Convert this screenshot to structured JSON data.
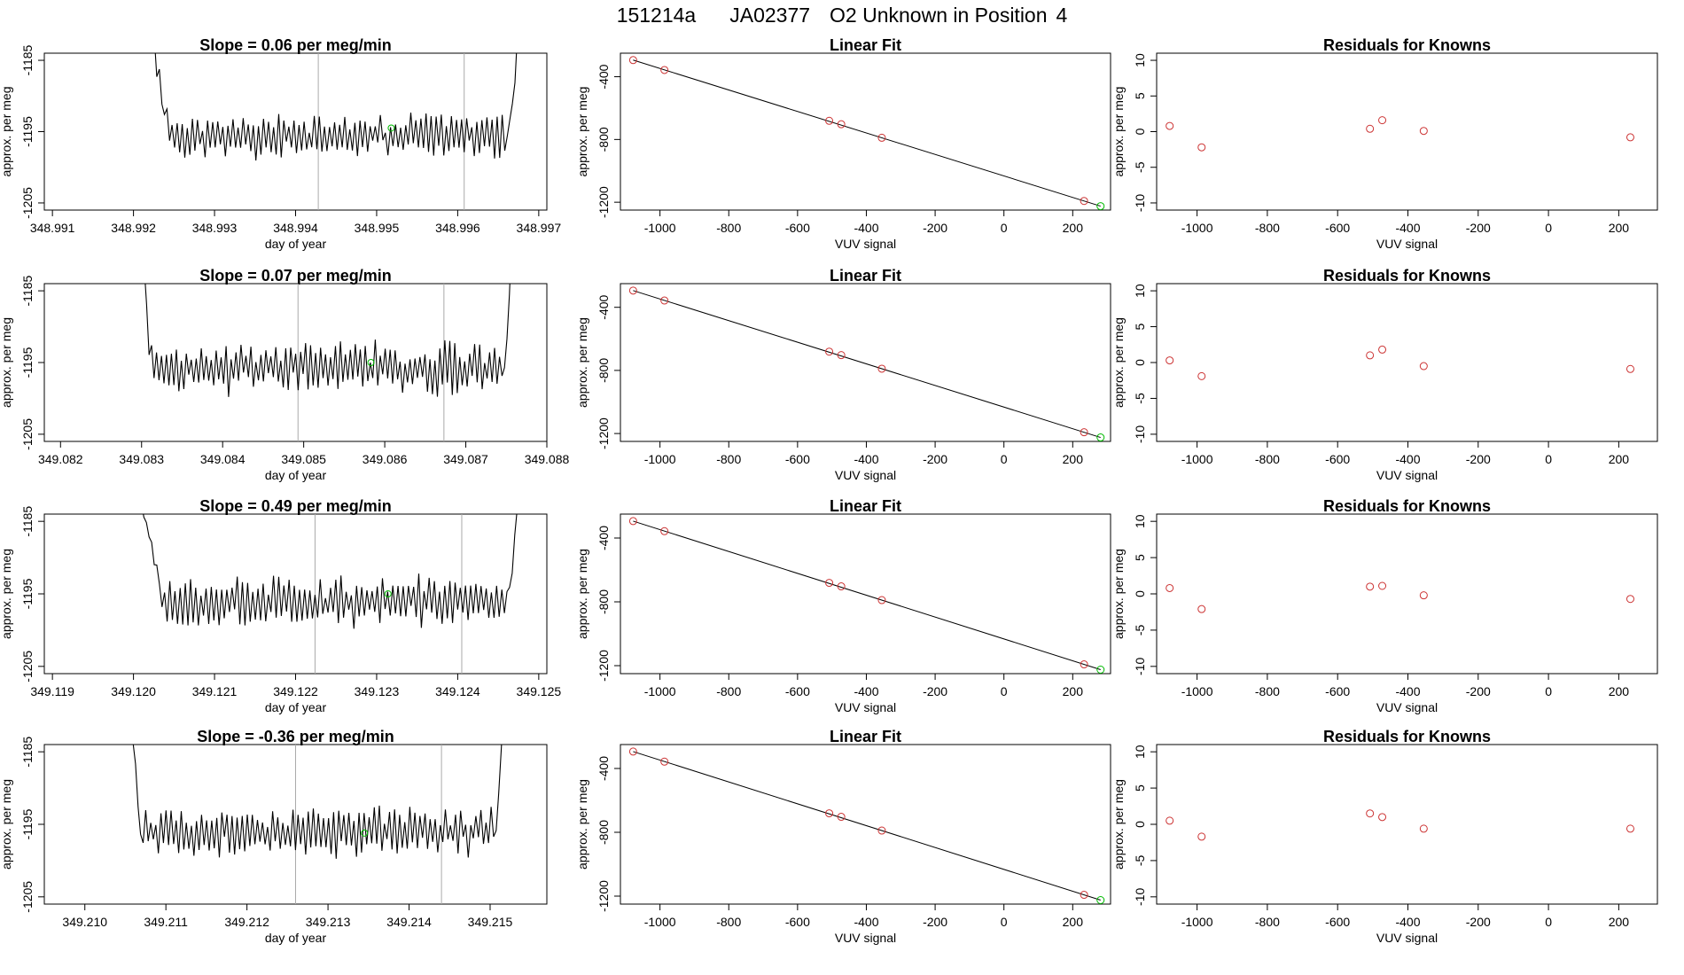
{
  "figure_title": {
    "run_id": "151214a",
    "tank_id": "JA02377",
    "description": "O2 Unknown in Position",
    "position": "4"
  },
  "colors": {
    "known": "#cc3333",
    "unknown": "#00bb00",
    "line": "#000000",
    "vline": "#aaaaaa"
  },
  "chart_data": [
    {
      "panel": "timeseries",
      "row": 1,
      "type": "line",
      "title_prefix": "Slope = ",
      "slope": "0.06",
      "title_suffix": " per meg/min",
      "xlabel": "day of year",
      "ylabel": "approx. per meg",
      "xlim": [
        348.9909,
        348.9971
      ],
      "ylim": [
        -1206,
        -1184
      ],
      "xticks": [
        "348.991",
        "348.992",
        "348.993",
        "348.994",
        "348.995",
        "348.996",
        "348.997"
      ],
      "yticks": [
        "-1185",
        "-1195",
        "-1205"
      ],
      "x_start": 348.9921,
      "x_end": 348.9968,
      "flat_start": 348.99245,
      "flat_end": 348.9966,
      "center": -1195.5,
      "amplitude": 2.4,
      "seed": 11,
      "vlines": [
        348.99428,
        348.99608
      ],
      "marker": {
        "x": 348.99518,
        "y": -1194.5
      }
    },
    {
      "panel": "fit",
      "row": 1,
      "type": "scatter",
      "title": "Linear Fit",
      "xlabel": "VUV signal",
      "ylabel": "approx. per meg",
      "xlim": [
        -1115,
        310
      ],
      "ylim": [
        -1250,
        -250
      ],
      "xticks": [
        "-1000",
        "-800",
        "-600",
        "-400",
        "-200",
        "0",
        "200"
      ],
      "yticks": [
        "-400",
        "-800",
        "-1200"
      ],
      "known_x": [
        -1078,
        -987,
        -508,
        -473,
        -355,
        233
      ],
      "known_y": [
        -294,
        -357,
        -681,
        -703,
        -789,
        -1192
      ],
      "unknown": {
        "x": 281,
        "y": -1225
      },
      "line": {
        "x1": -1078,
        "y1": -294,
        "x2": 281,
        "y2": -1225
      }
    },
    {
      "panel": "residuals",
      "row": 1,
      "type": "scatter",
      "title": "Residuals for Knowns",
      "xlabel": "VUV signal",
      "ylabel": "approx. per meg",
      "xlim": [
        -1115,
        310
      ],
      "ylim": [
        -11,
        11
      ],
      "xticks": [
        "-1000",
        "-800",
        "-600",
        "-400",
        "-200",
        "0",
        "200"
      ],
      "yticks": [
        "10",
        "5",
        "0",
        "-5",
        "-10"
      ],
      "x": [
        -1078,
        -987,
        -508,
        -473,
        -355,
        233
      ],
      "y": [
        0.8,
        -2.2,
        0.4,
        1.6,
        0.1,
        -0.8
      ]
    },
    {
      "panel": "timeseries",
      "row": 2,
      "type": "line",
      "title_prefix": "Slope = ",
      "slope": "0.07",
      "title_suffix": " per meg/min",
      "xlabel": "day of year",
      "ylabel": "approx. per meg",
      "xlim": [
        349.0818,
        349.088
      ],
      "ylim": [
        -1206,
        -1184
      ],
      "xticks": [
        "349.082",
        "349.083",
        "349.084",
        "349.085",
        "349.086",
        "349.087",
        "349.088"
      ],
      "yticks": [
        "-1185",
        "-1195",
        "-1205"
      ],
      "x_start": 349.083,
      "x_end": 349.0876,
      "flat_start": 349.0831,
      "flat_end": 349.08745,
      "center": -1195.8,
      "amplitude": 2.8,
      "seed": 23,
      "vlines": [
        349.08493,
        349.08673
      ],
      "marker": {
        "x": 349.08583,
        "y": -1195.0
      }
    },
    {
      "panel": "fit",
      "row": 2,
      "type": "scatter",
      "title": "Linear Fit",
      "xlabel": "VUV signal",
      "ylabel": "approx. per meg",
      "xlim": [
        -1115,
        310
      ],
      "ylim": [
        -1250,
        -250
      ],
      "xticks": [
        "-1000",
        "-800",
        "-600",
        "-400",
        "-200",
        "0",
        "200"
      ],
      "yticks": [
        "-400",
        "-800",
        "-1200"
      ],
      "known_x": [
        -1078,
        -987,
        -508,
        -473,
        -355,
        233
      ],
      "known_y": [
        -294,
        -357,
        -681,
        -703,
        -789,
        -1192
      ],
      "unknown": {
        "x": 281,
        "y": -1225
      },
      "line": {
        "x1": -1078,
        "y1": -294,
        "x2": 281,
        "y2": -1225
      }
    },
    {
      "panel": "residuals",
      "row": 2,
      "type": "scatter",
      "title": "Residuals for Knowns",
      "xlabel": "VUV signal",
      "ylabel": "approx. per meg",
      "xlim": [
        -1115,
        310
      ],
      "ylim": [
        -11,
        11
      ],
      "xticks": [
        "-1000",
        "-800",
        "-600",
        "-400",
        "-200",
        "0",
        "200"
      ],
      "yticks": [
        "10",
        "5",
        "0",
        "-5",
        "-10"
      ],
      "x": [
        -1078,
        -987,
        -508,
        -473,
        -355,
        233
      ],
      "y": [
        0.3,
        -1.9,
        1.0,
        1.8,
        -0.5,
        -0.9
      ]
    },
    {
      "panel": "timeseries",
      "row": 3,
      "type": "line",
      "title_prefix": "Slope = ",
      "slope": "0.49",
      "title_suffix": " per meg/min",
      "xlabel": "day of year",
      "ylabel": "approx. per meg",
      "xlim": [
        349.1189,
        349.1251
      ],
      "ylim": [
        -1206,
        -1184
      ],
      "xticks": [
        "349.119",
        "349.120",
        "349.121",
        "349.122",
        "349.123",
        "349.124",
        "349.125"
      ],
      "yticks": [
        "-1185",
        "-1195",
        "-1205"
      ],
      "x_start": 349.12,
      "x_end": 349.1248,
      "flat_start": 349.12035,
      "flat_end": 349.1246,
      "center": -1196.0,
      "amplitude": 2.6,
      "seed": 37,
      "vlines": [
        349.12224,
        349.12405
      ],
      "marker": {
        "x": 349.12314,
        "y": -1195.0
      }
    },
    {
      "panel": "fit",
      "row": 3,
      "type": "scatter",
      "title": "Linear Fit",
      "xlabel": "VUV signal",
      "ylabel": "approx. per meg",
      "xlim": [
        -1115,
        310
      ],
      "ylim": [
        -1250,
        -250
      ],
      "xticks": [
        "-1000",
        "-800",
        "-600",
        "-400",
        "-200",
        "0",
        "200"
      ],
      "yticks": [
        "-400",
        "-800",
        "-1200"
      ],
      "known_x": [
        -1078,
        -987,
        -508,
        -473,
        -355,
        233
      ],
      "known_y": [
        -294,
        -357,
        -681,
        -703,
        -789,
        -1192
      ],
      "unknown": {
        "x": 281,
        "y": -1225
      },
      "line": {
        "x1": -1078,
        "y1": -294,
        "x2": 281,
        "y2": -1225
      }
    },
    {
      "panel": "residuals",
      "row": 3,
      "type": "scatter",
      "title": "Residuals for Knowns",
      "xlabel": "VUV signal",
      "ylabel": "approx. per meg",
      "xlim": [
        -1115,
        310
      ],
      "ylim": [
        -11,
        11
      ],
      "xticks": [
        "-1000",
        "-800",
        "-600",
        "-400",
        "-200",
        "0",
        "200"
      ],
      "yticks": [
        "10",
        "5",
        "0",
        "-5",
        "-10"
      ],
      "x": [
        -1078,
        -987,
        -508,
        -473,
        -355,
        233
      ],
      "y": [
        0.8,
        -2.1,
        1.0,
        1.1,
        -0.2,
        -0.7
      ]
    },
    {
      "panel": "timeseries",
      "row": 4,
      "type": "line",
      "title_prefix": "Slope = ",
      "slope": "-0.36",
      "title_suffix": " per meg/min",
      "xlabel": "day of year",
      "ylabel": "approx. per meg",
      "xlim": [
        349.2095,
        349.2157
      ],
      "ylim": [
        -1206,
        -1184
      ],
      "xticks": [
        "349.210",
        "349.211",
        "349.212",
        "349.213",
        "349.214",
        "349.215"
      ],
      "yticks": [
        "-1185",
        "-1195",
        "-1205"
      ],
      "x_start": 349.2105,
      "x_end": 349.2152,
      "flat_start": 349.2107,
      "flat_end": 349.21505,
      "center": -1196.0,
      "amplitude": 2.7,
      "seed": 53,
      "vlines": [
        349.2126,
        349.2144
      ],
      "marker": {
        "x": 349.21345,
        "y": -1196.2
      }
    },
    {
      "panel": "fit",
      "row": 4,
      "type": "scatter",
      "title": "Linear Fit",
      "xlabel": "VUV signal",
      "ylabel": "approx. per meg",
      "xlim": [
        -1115,
        310
      ],
      "ylim": [
        -1250,
        -250
      ],
      "xticks": [
        "-1000",
        "-800",
        "-600",
        "-400",
        "-200",
        "0",
        "200"
      ],
      "yticks": [
        "-400",
        "-800",
        "-1200"
      ],
      "known_x": [
        -1078,
        -987,
        -508,
        -473,
        -355,
        233
      ],
      "known_y": [
        -294,
        -357,
        -681,
        -703,
        -789,
        -1192
      ],
      "unknown": {
        "x": 281,
        "y": -1225
      },
      "line": {
        "x1": -1078,
        "y1": -294,
        "x2": 281,
        "y2": -1225
      }
    },
    {
      "panel": "residuals",
      "row": 4,
      "type": "scatter",
      "title": "Residuals for Knowns",
      "xlabel": "VUV signal",
      "ylabel": "approx. per meg",
      "xlim": [
        -1115,
        310
      ],
      "ylim": [
        -11,
        11
      ],
      "xticks": [
        "-1000",
        "-800",
        "-600",
        "-400",
        "-200",
        "0",
        "200"
      ],
      "yticks": [
        "10",
        "5",
        "0",
        "-5",
        "-10"
      ],
      "x": [
        -1078,
        -987,
        -508,
        -473,
        -355,
        233
      ],
      "y": [
        0.5,
        -1.7,
        1.5,
        1.0,
        -0.6,
        -0.6
      ]
    }
  ]
}
